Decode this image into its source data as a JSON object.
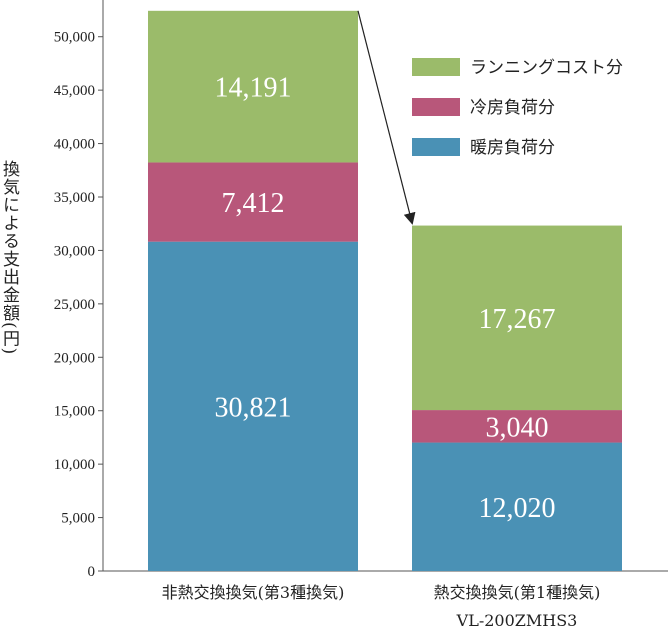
{
  "chart_data": {
    "type": "bar",
    "stacked": true,
    "ylabel": "換気による支出金額(円)",
    "ylim": [
      0,
      52500
    ],
    "yticks": [
      0,
      5000,
      10000,
      15000,
      20000,
      25000,
      30000,
      35000,
      40000,
      45000,
      50000
    ],
    "ytick_labels": [
      "0",
      "5,000",
      "10,000",
      "15,000",
      "20,000",
      "25,000",
      "30,000",
      "35,000",
      "40,000",
      "45,000",
      "50,000"
    ],
    "categories": [
      [
        "非熱交換換気(第3種換気)"
      ],
      [
        "熱交換換気(第1種換気)",
        "VL-200ZMHS3"
      ]
    ],
    "series": [
      {
        "name": "暖房負荷分",
        "color": "#4a91b5",
        "values": [
          30821,
          12020
        ],
        "labels": [
          "30,821",
          "12,020"
        ]
      },
      {
        "name": "冷房負荷分",
        "color": "#b8577a",
        "values": [
          7412,
          3040
        ],
        "labels": [
          "7,412",
          "3,040"
        ]
      },
      {
        "name": "ランニングコスト分",
        "color": "#9bbb6a",
        "values": [
          14191,
          17267
        ],
        "labels": [
          "14,191",
          "17,267"
        ]
      }
    ],
    "legend": [
      "ランニングコスト分",
      "冷房負荷分",
      "暖房負荷分"
    ],
    "legend_position": "top-right",
    "annotation": "arrow from top of first bar to top of second bar",
    "grid": false
  }
}
